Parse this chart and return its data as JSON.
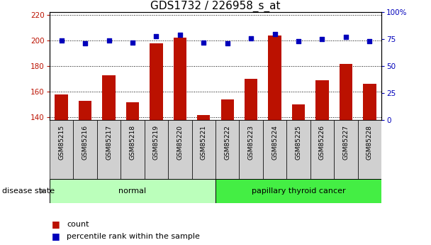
{
  "title": "GDS1732 / 226958_s_at",
  "samples": [
    "GSM85215",
    "GSM85216",
    "GSM85217",
    "GSM85218",
    "GSM85219",
    "GSM85220",
    "GSM85221",
    "GSM85222",
    "GSM85223",
    "GSM85224",
    "GSM85225",
    "GSM85226",
    "GSM85227",
    "GSM85228"
  ],
  "count_values": [
    158,
    153,
    173,
    152,
    198,
    202,
    142,
    154,
    170,
    204,
    150,
    169,
    182,
    166
  ],
  "percentile_values": [
    74,
    71,
    74,
    72,
    78,
    79,
    72,
    71,
    76,
    80,
    73,
    75,
    77,
    73
  ],
  "groups": [
    {
      "label": "normal",
      "start": 0,
      "end": 7,
      "color": "#bbffbb"
    },
    {
      "label": "papillary thyroid cancer",
      "start": 7,
      "end": 14,
      "color": "#44ee44"
    }
  ],
  "ylim_left": [
    138,
    222
  ],
  "ylim_right": [
    0,
    100
  ],
  "yticks_left": [
    140,
    160,
    180,
    200,
    220
  ],
  "yticks_right": [
    0,
    25,
    50,
    75,
    100
  ],
  "bar_color": "#bb1100",
  "dot_color": "#0000bb",
  "grid_color": "#000000",
  "disease_state_label": "disease state",
  "legend_count": "count",
  "legend_percentile": "percentile rank within the sample",
  "title_fontsize": 11,
  "tick_fontsize": 7.5,
  "sample_fontsize": 6.5
}
